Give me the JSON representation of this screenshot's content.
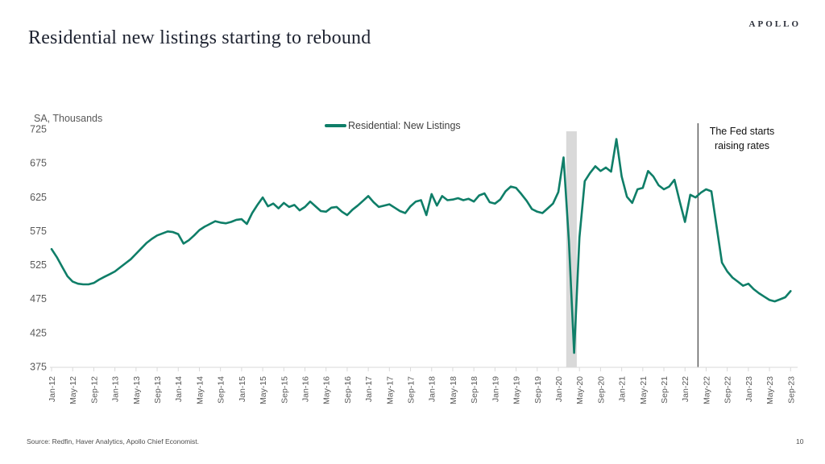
{
  "slide": {
    "logo": "APOLLO",
    "title": "Residential new listings starting to rebound",
    "source": "Source: Redfin, Haver Analytics, Apollo Chief Economist.",
    "page_number": "10"
  },
  "chart_data": {
    "type": "line",
    "axis_title": "SA, Thousands",
    "legend": [
      "Residential: New Listings"
    ],
    "legend_position": "top-center",
    "grid": false,
    "ylim": [
      375,
      725
    ],
    "y_ticks": [
      725,
      675,
      625,
      575,
      525,
      475,
      425,
      375
    ],
    "x_tick_labels": [
      "Jan-12",
      "May-12",
      "Sep-12",
      "Jan-13",
      "May-13",
      "Sep-13",
      "Jan-14",
      "May-14",
      "Sep-14",
      "Jan-15",
      "May-15",
      "Sep-15",
      "Jan-16",
      "May-16",
      "Sep-16",
      "Jan-17",
      "May-17",
      "Sep-17",
      "Jan-18",
      "May-18",
      "Sep-18",
      "Jan-19",
      "May-19",
      "Sep-19",
      "Jan-20",
      "May-20",
      "Sep-20",
      "Jan-21",
      "May-21",
      "Sep-21",
      "Jan-22",
      "May-22",
      "Sep-22",
      "Jan-23",
      "May-23",
      "Sep-23"
    ],
    "series": [
      {
        "name": "Residential: New Listings",
        "color": "#0f7e68",
        "frequency": "monthly",
        "x_start": "Jan-12",
        "x_end": "Sep-23",
        "values": [
          548,
          536,
          522,
          508,
          500,
          497,
          496,
          496,
          498,
          503,
          507,
          511,
          515,
          521,
          527,
          533,
          541,
          549,
          557,
          563,
          568,
          571,
          574,
          573,
          570,
          556,
          561,
          568,
          576,
          581,
          585,
          589,
          587,
          586,
          588,
          591,
          592,
          585,
          601,
          613,
          624,
          611,
          615,
          608,
          616,
          610,
          613,
          605,
          610,
          618,
          611,
          604,
          603,
          609,
          610,
          603,
          598,
          606,
          612,
          619,
          626,
          617,
          610,
          612,
          614,
          609,
          604,
          601,
          611,
          618,
          620,
          598,
          629,
          612,
          626,
          620,
          621,
          623,
          620,
          622,
          618,
          627,
          630,
          617,
          615,
          621,
          633,
          640,
          638,
          629,
          619,
          607,
          603,
          601,
          608,
          615,
          632,
          683,
          560,
          395,
          565,
          648,
          660,
          670,
          663,
          668,
          662,
          710,
          655,
          625,
          616,
          636,
          638,
          663,
          655,
          642,
          636,
          640,
          650,
          618,
          588,
          628,
          624,
          631,
          636,
          633,
          580,
          528,
          515,
          506,
          500,
          494,
          497,
          489,
          483,
          478,
          473,
          471,
          474,
          477,
          486
        ]
      }
    ],
    "recession_band": {
      "from": "Feb-20",
      "to": "Apr-20",
      "color": "#d9d9d9"
    },
    "annotation": {
      "text": "The Fed starts raising rates",
      "month": "Mar-22",
      "line_color": "#404040"
    },
    "colors": {
      "axis": "#d9d9d9",
      "tick_label": "#595959",
      "line": "#0f7e68"
    }
  }
}
